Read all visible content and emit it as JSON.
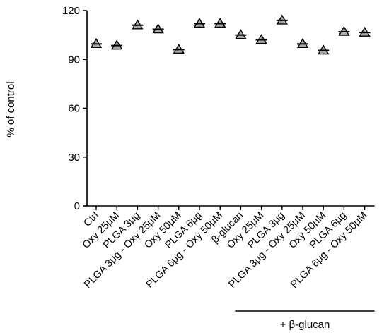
{
  "chart_data": {
    "type": "scatter",
    "title": "",
    "ylabel": "% of control",
    "xlabel": "",
    "ylim": [
      0,
      120
    ],
    "yticks": [
      0,
      30,
      60,
      90,
      120
    ],
    "grid": false,
    "categories": [
      "Ctrl",
      "Oxy 25μM",
      "PLGA 3μg",
      "PLGA 3μg - Oxy 25μM",
      "Oxy 50μM",
      "PLGA 6μg",
      "PLGA 6μg - Oxy 50μM",
      "β-glucan",
      "Oxy 25μM",
      "PLGA 3μg",
      "PLGA 3μg - Oxy 25μM",
      "Oxy 50μM",
      "PLGA 6μg",
      "PLGA 6μg - Oxy 50μM"
    ],
    "values": [
      99.5,
      98.5,
      111,
      108.5,
      96,
      112,
      112,
      105,
      102,
      114,
      99.5,
      95.5,
      107,
      106.5
    ],
    "marker": "triangle",
    "marker_color": "#a9a9a9",
    "group_annotation": {
      "label": "+ β-glucan",
      "start_index": 7,
      "end_index": 13
    }
  }
}
